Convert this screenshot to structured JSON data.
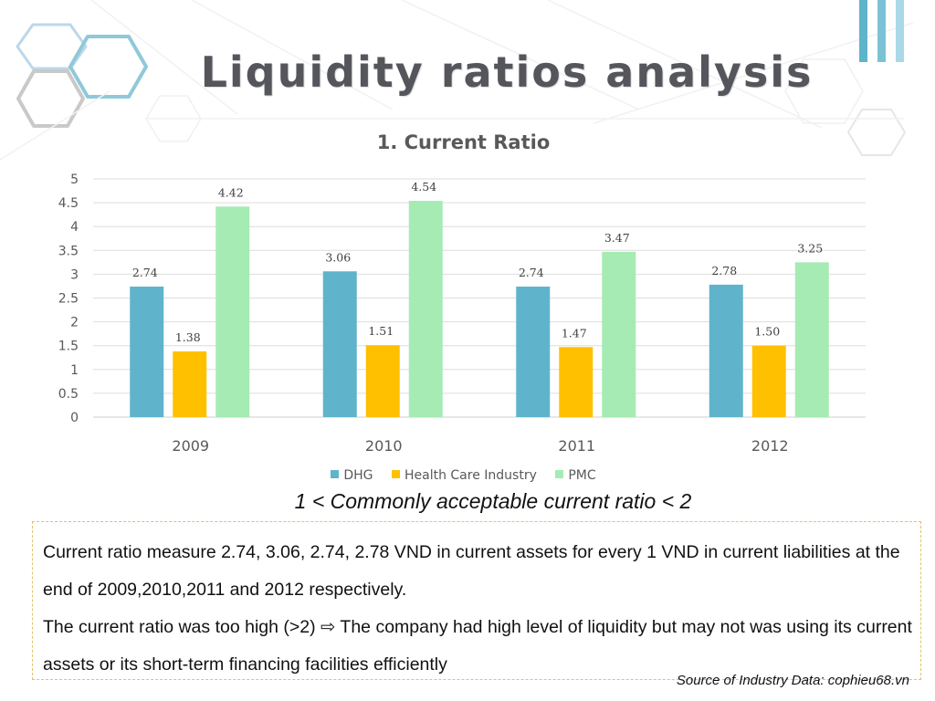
{
  "slide": {
    "title": "Liquidity ratios analysis",
    "note": "1 < Commonly acceptable current ratio < 2",
    "paragraphs": [
      "Current ratio measure 2.74, 3.06, 2.74, 2.78 VND in current assets for every 1 VND in current liabilities at the end of 2009,2010,2011 and 2012 respectively.",
      "The current ratio was too high (>2) ⇨ The company had high level of liquidity but may not was using its current assets or its short-term financing facilities efficiently"
    ],
    "source": "Source of Industry Data: cophieu68.vn"
  },
  "colors": {
    "DHG": "#5fb4cc",
    "Health Care Industry": "#ffc000",
    "PMC": "#a6ebb3"
  },
  "chart_data": {
    "type": "bar",
    "title": "1. Current Ratio",
    "categories": [
      "2009",
      "2010",
      "2011",
      "2012"
    ],
    "series": [
      {
        "name": "DHG",
        "values": [
          2.74,
          3.06,
          2.74,
          2.78
        ],
        "labels": [
          "2.74",
          "3.06",
          "2.74",
          "2.78"
        ]
      },
      {
        "name": "Health Care Industry",
        "values": [
          1.38,
          1.51,
          1.47,
          1.5
        ],
        "labels": [
          "1.38",
          "1.51",
          "1.47",
          "1.50"
        ]
      },
      {
        "name": "PMC",
        "values": [
          4.42,
          4.54,
          3.47,
          3.25
        ],
        "labels": [
          "4.42",
          "4.54",
          "3.47",
          "3.25"
        ]
      }
    ],
    "ylim": [
      0,
      5
    ],
    "yticks": [
      "0",
      "0.5",
      "1",
      "1.5",
      "2",
      "2.5",
      "3",
      "3.5",
      "4",
      "4.5",
      "5"
    ],
    "grid": true,
    "legend_position": "bottom"
  }
}
